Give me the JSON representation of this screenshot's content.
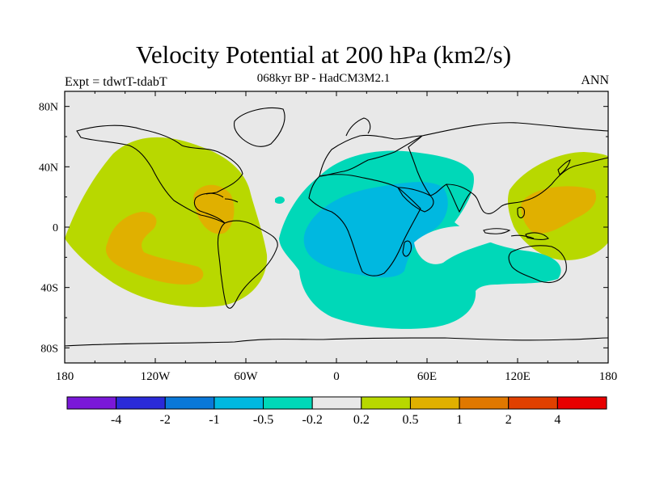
{
  "title": "Velocity Potential at 200 hPa (km2/s)",
  "subtitle": "068kyr BP - HadCM3M2.1",
  "left_label": "Expt = tdwtT-tdabT",
  "right_label": "ANN",
  "map": {
    "projection": "cylindrical-equidistant",
    "lon_range": [
      -180,
      180
    ],
    "lat_range": [
      -90,
      90
    ],
    "x_tick_labels": [
      "180",
      "120W",
      "60W",
      "0",
      "60E",
      "120E",
      "180"
    ],
    "y_tick_labels": [
      "80N",
      "40N",
      "0",
      "40S",
      "80S"
    ],
    "background_color": "#e8e8e8"
  },
  "colorbar": {
    "labels": [
      "-4",
      "-2",
      "-1",
      "-0.5",
      "-0.2",
      "0.2",
      "0.5",
      "1",
      "2",
      "4"
    ],
    "colors": [
      "#7a18d8",
      "#2a2ad8",
      "#0a78d8",
      "#00b8e0",
      "#00d8b8",
      "#e8e8e8",
      "#b8d800",
      "#e0b000",
      "#e07800",
      "#e04000",
      "#e80000"
    ]
  }
}
